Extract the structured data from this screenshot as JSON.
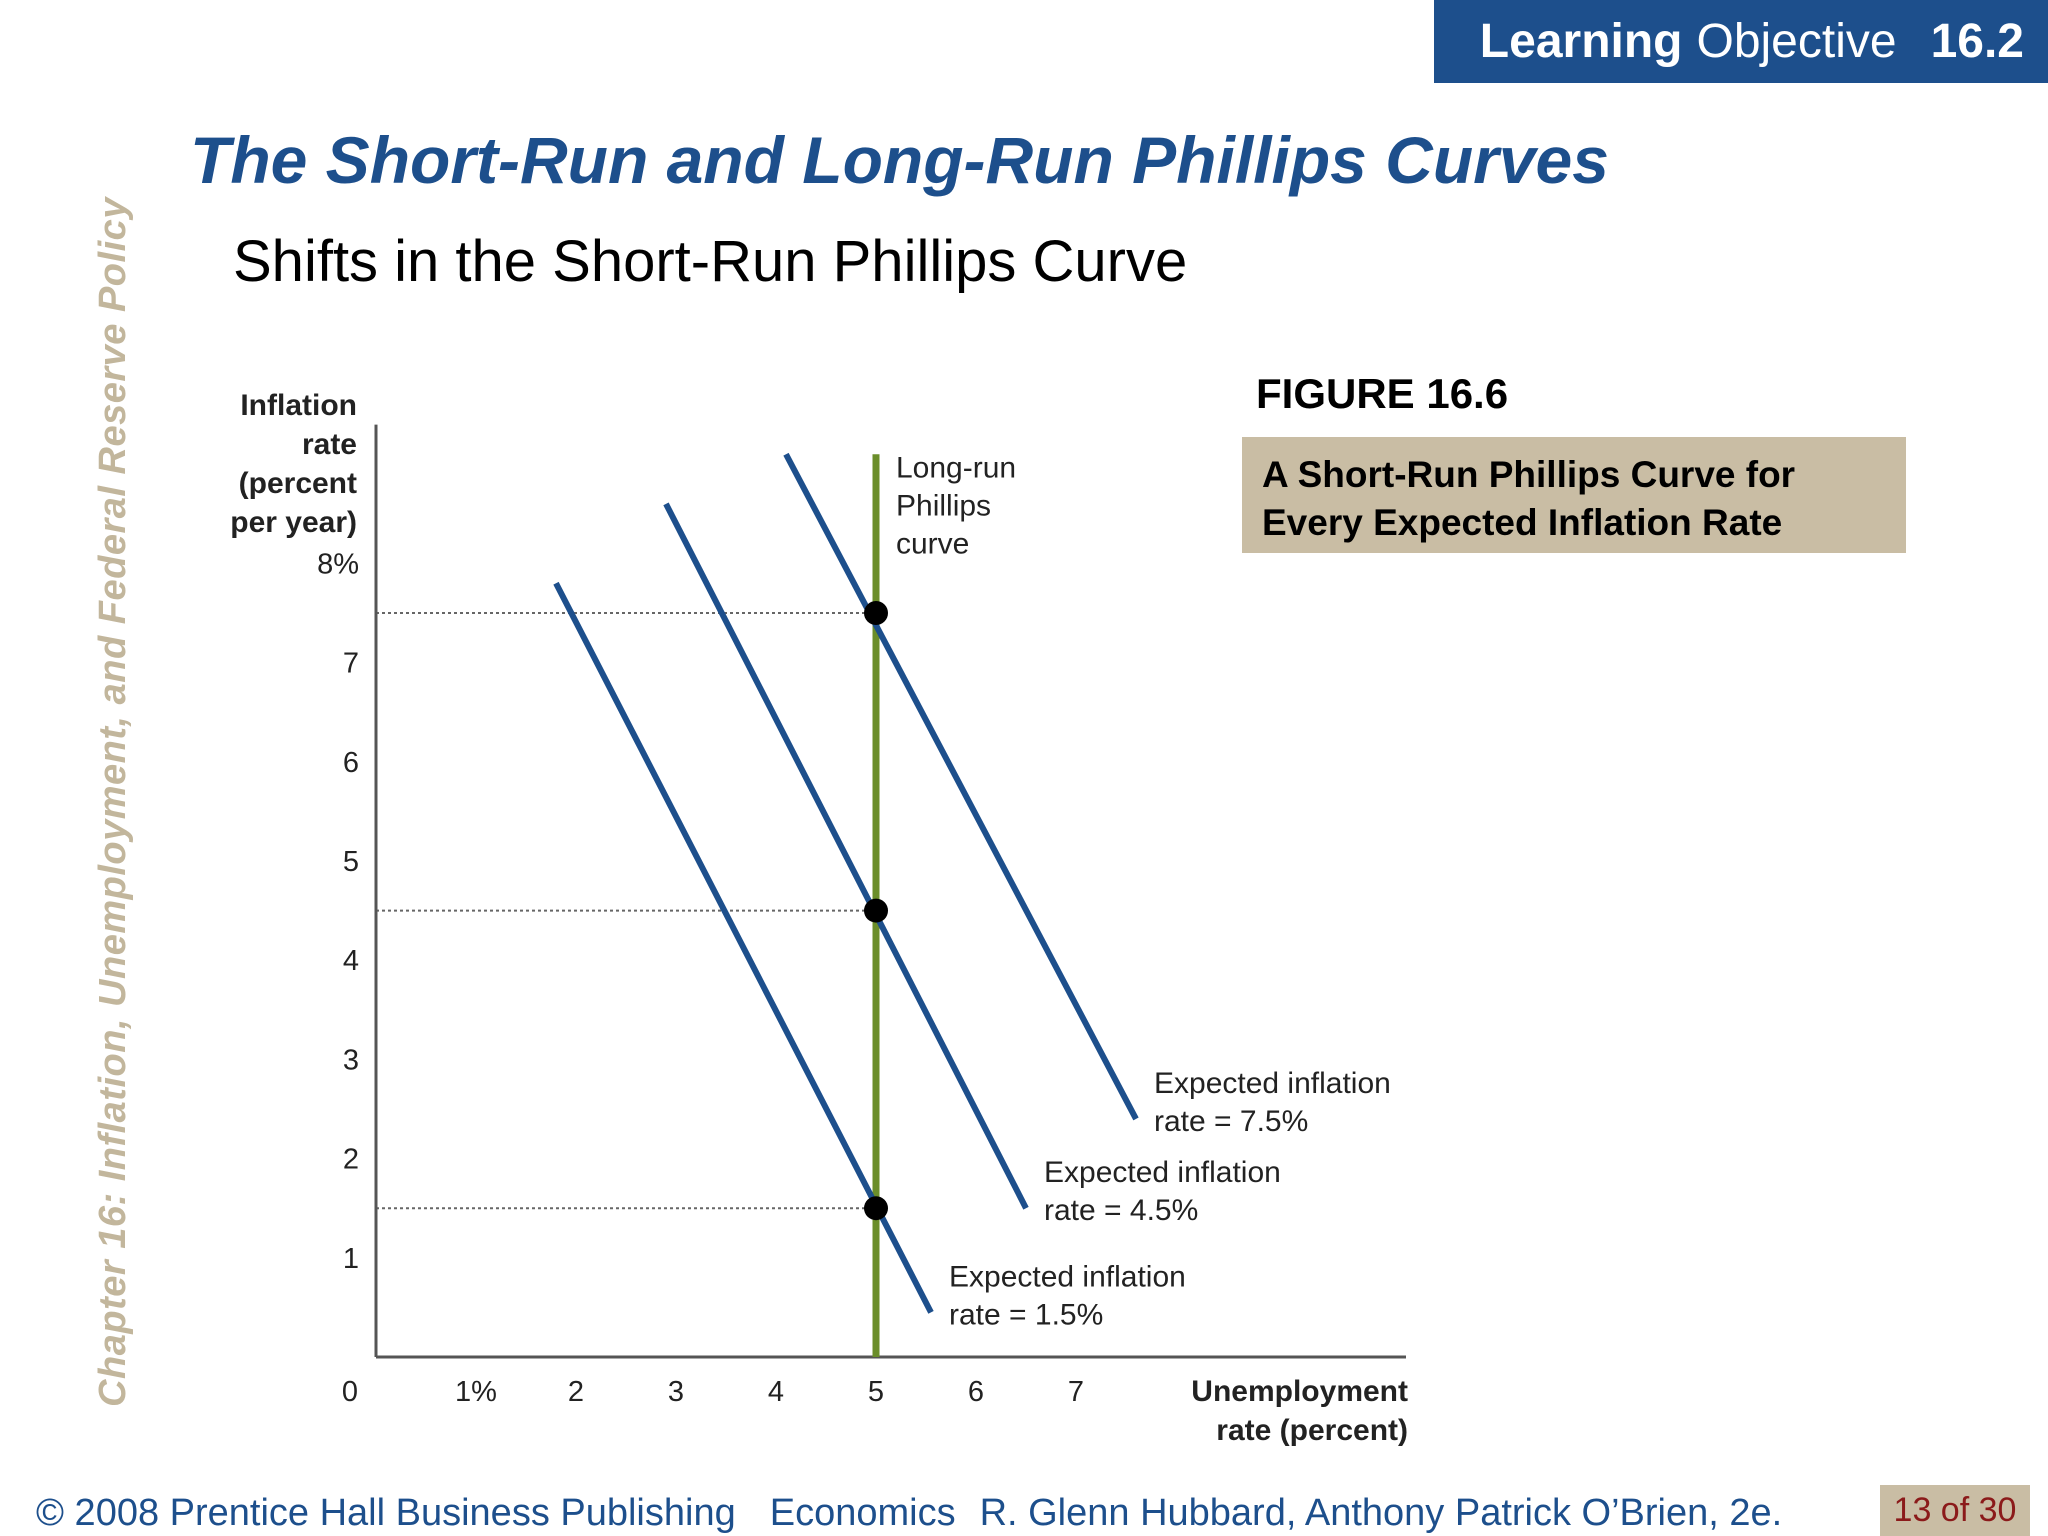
{
  "header": {
    "learning_label": "Learning",
    "objective_label": "Objective",
    "objective_number": "16.2"
  },
  "side_text": "Chapter 16:  Inflation, Unemployment, and Federal Reserve Policy",
  "title": "The Short-Run and Long-Run Phillips Curves",
  "subtitle": "Shifts in the Short-Run Phillips Curve",
  "figure": {
    "label": "FIGURE 16.6",
    "caption_line1": "A Short-Run Phillips Curve for",
    "caption_line2": "Every Expected Inflation Rate"
  },
  "footer": {
    "copyright": "© 2008 Prentice Hall Business Publishing",
    "course": "Economics",
    "authors": "R. Glenn Hubbard, Anthony Patrick O’Brien, 2e.",
    "page": "13 of 30"
  },
  "colors": {
    "brand_blue": "#1d4f8c",
    "curve_blue": "#1d4f8c",
    "lrpc_green": "#6b8e2a",
    "tan": "#c9bda4",
    "side_text": "#c2b69c",
    "page_number": "#8b1a1a"
  },
  "chart_data": {
    "type": "line",
    "ylabel_lines": [
      "Inflation",
      "rate",
      "(percent",
      "per year)"
    ],
    "xlabel_lines": [
      "Unemployment",
      "rate (percent)"
    ],
    "origin_label": "0",
    "x_tick_labels": [
      "1%",
      "2",
      "3",
      "4",
      "5",
      "6",
      "7"
    ],
    "x_ticks": [
      1,
      2,
      3,
      4,
      5,
      6,
      7
    ],
    "y_tick_labels": [
      "1",
      "2",
      "3",
      "4",
      "5",
      "6",
      "7",
      "8%"
    ],
    "y_ticks": [
      1,
      2,
      3,
      4,
      5,
      6,
      7,
      8
    ],
    "xlim": [
      0,
      10.3
    ],
    "ylim": [
      0,
      9.5
    ],
    "long_run": {
      "x": 5,
      "y_range": [
        0,
        9.1
      ],
      "label_lines": [
        "Long-run",
        "Phillips",
        "curve"
      ]
    },
    "series": [
      {
        "label_lines": [
          "Expected inflation",
          "rate = 1.5%"
        ],
        "points": [
          [
            1.8,
            7.8
          ],
          [
            5.55,
            0.45
          ]
        ]
      },
      {
        "label_lines": [
          "Expected inflation",
          "rate = 4.5%"
        ],
        "points": [
          [
            2.9,
            8.6
          ],
          [
            6.5,
            1.5
          ]
        ]
      },
      {
        "label_lines": [
          "Expected inflation",
          "rate = 7.5%"
        ],
        "points": [
          [
            4.1,
            9.1
          ],
          [
            7.6,
            2.4
          ]
        ]
      }
    ],
    "equilibria": [
      [
        5,
        1.5
      ],
      [
        5,
        4.5
      ],
      [
        5,
        7.5
      ]
    ],
    "dotted_guides_y": [
      1.5,
      4.5,
      7.5
    ]
  }
}
